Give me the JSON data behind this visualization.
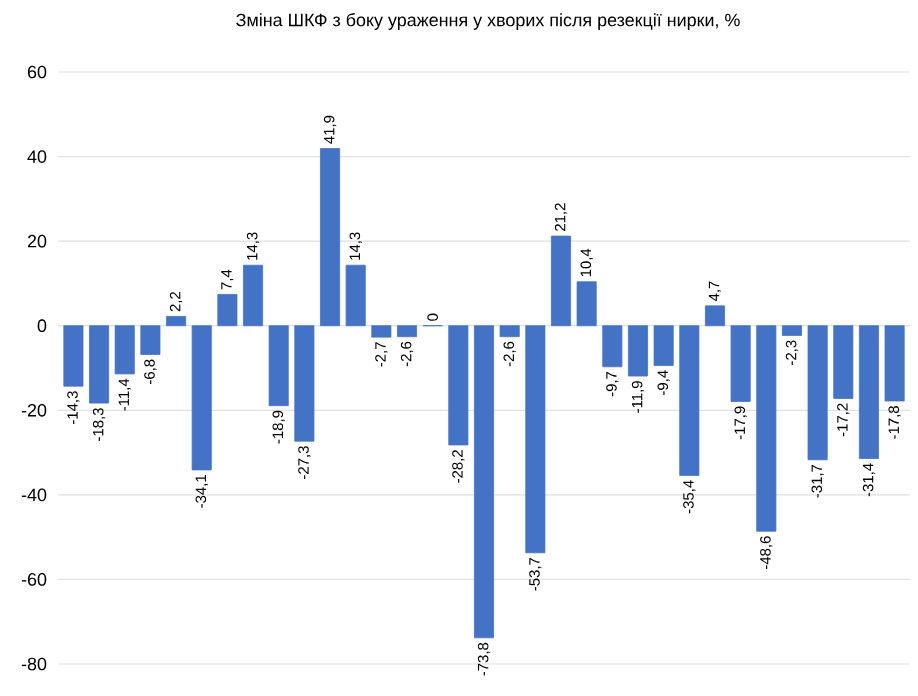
{
  "chart_data": {
    "type": "bar",
    "title": "Зміна ШКФ з боку ураження у хворих після резекції нирки, %",
    "categories": [
      null,
      null,
      null,
      null,
      null,
      null,
      null,
      null,
      null,
      null,
      null,
      null,
      null,
      null,
      null,
      null,
      null,
      null,
      null,
      null,
      null,
      null,
      null,
      null,
      null,
      null,
      null,
      null,
      null,
      null,
      null,
      null,
      null
    ],
    "values": [
      -14.3,
      -18.3,
      -11.4,
      -6.8,
      2.2,
      -34.1,
      7.4,
      14.3,
      -18.9,
      -27.3,
      41.9,
      14.3,
      -2.7,
      -2.6,
      0,
      -28.2,
      -73.8,
      -2.6,
      -53.7,
      21.2,
      10.4,
      -9.7,
      -11.9,
      -9.4,
      -35.4,
      4.7,
      -17.9,
      -48.6,
      -2.3,
      -31.7,
      -17.2,
      -31.4,
      -17.8
    ],
    "value_labels": [
      "-14,3",
      "-18,3",
      "-11,4",
      "-6,8",
      "2,2",
      "-34,1",
      "7,4",
      "14,3",
      "-18,9",
      "-27,3",
      "41,9",
      "14,3",
      "-2,7",
      "-2,6",
      "0",
      "-28,2",
      "-73,8",
      "-2,6",
      "-53,7",
      "21,2",
      "10,4",
      "-9,7",
      "-11,9",
      "-9,4",
      "-35,4",
      "4,7",
      "-17,9",
      "-48,6",
      "-2,3",
      "-31,7",
      "-17,2",
      "-31,4",
      "-17,8"
    ],
    "color": "#4472c4",
    "ylim": [
      -80,
      60
    ],
    "yticks": [
      -80,
      -60,
      -40,
      -20,
      0,
      20,
      40,
      60
    ],
    "grid": "y"
  }
}
